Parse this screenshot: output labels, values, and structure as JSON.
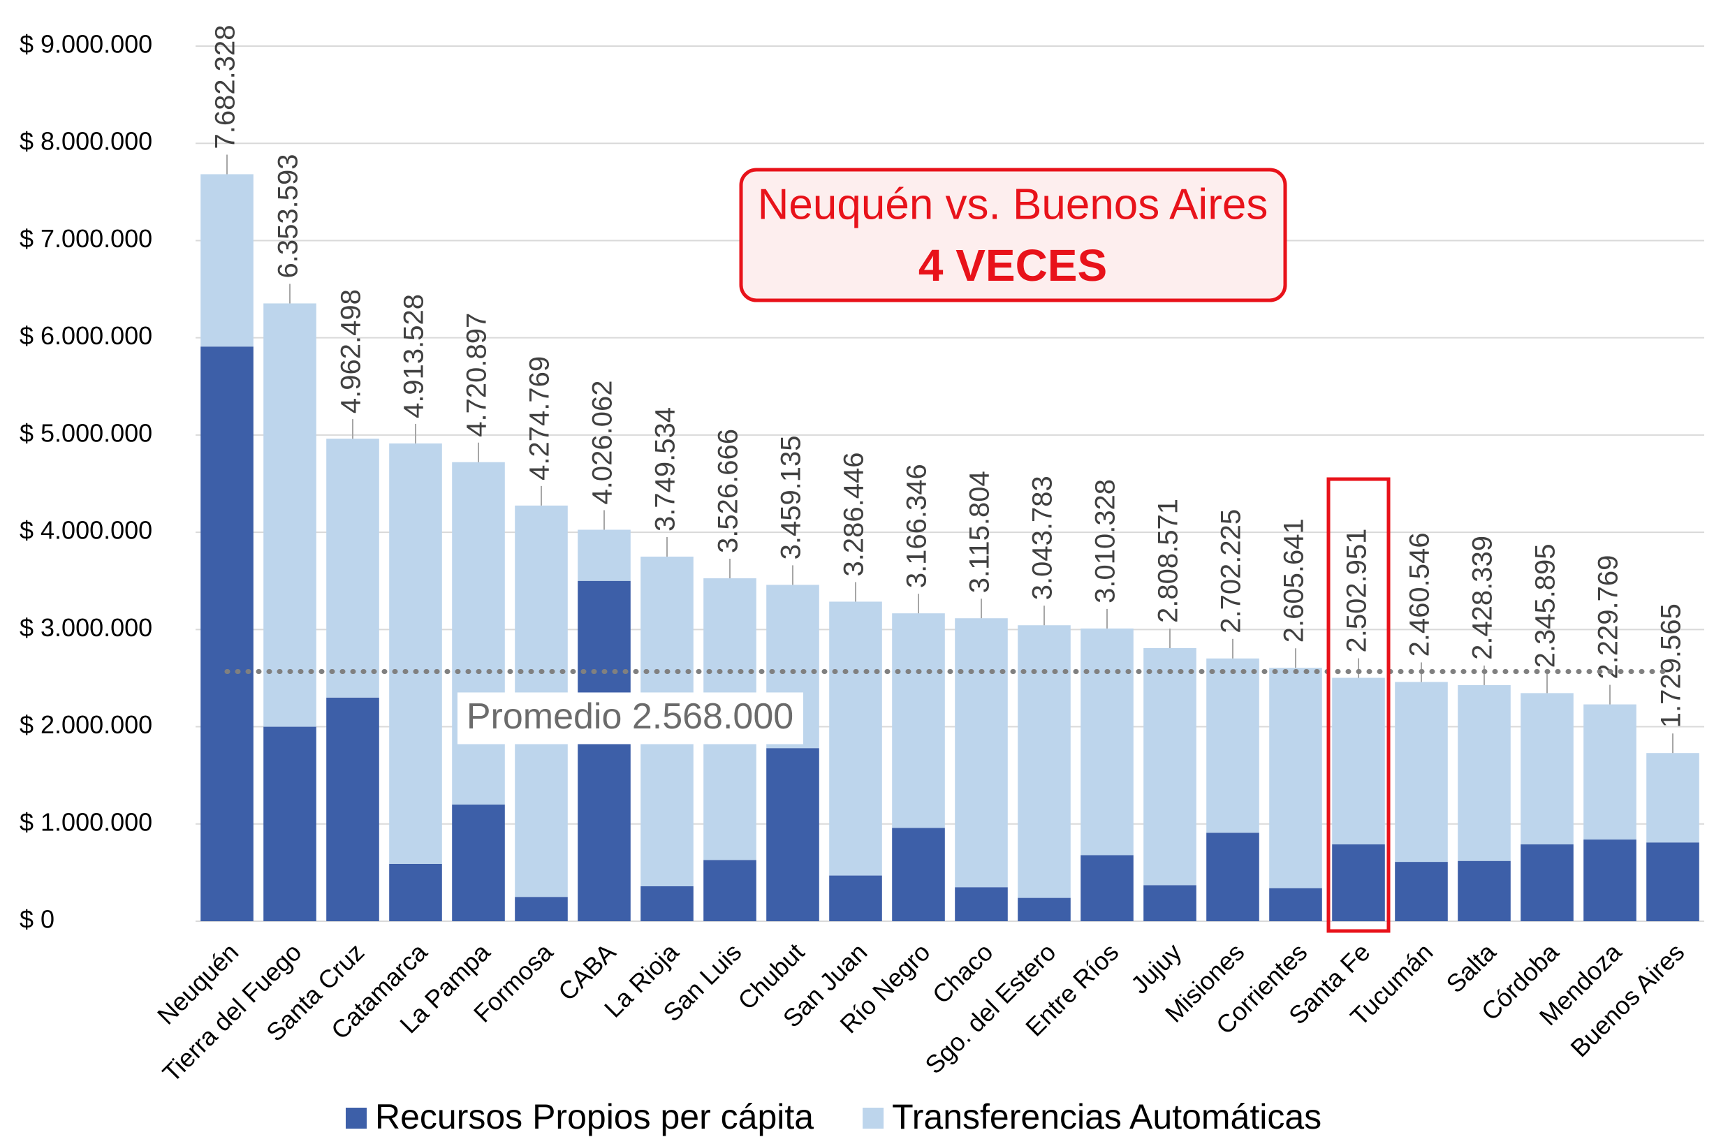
{
  "chart_data": {
    "type": "stacked_bar",
    "categories": [
      "Neuquén",
      "Tierra del Fuego",
      "Santa Cruz",
      "Catamarca",
      "La Pampa",
      "Formosa",
      "CABA",
      "La Rioja",
      "San Luis",
      "Chubut",
      "San Juan",
      "Río Negro",
      "Chaco",
      "Sgo. del Estero",
      "Entre Ríos",
      "Jujuy",
      "Misiones",
      "Corrientes",
      "Santa Fe",
      "Tucumán",
      "Salta",
      "Córdoba",
      "Mendoza",
      "Buenos Aires"
    ],
    "series": [
      {
        "name": "Recursos Propios per cápita",
        "color": "#3d5fa8",
        "values": [
          5910000,
          2000000,
          2300000,
          590000,
          1200000,
          250000,
          3500000,
          360000,
          630000,
          1780000,
          470000,
          960000,
          350000,
          240000,
          680000,
          370000,
          910000,
          340000,
          790000,
          610000,
          620000,
          790000,
          840000,
          810000
        ]
      },
      {
        "name": "Transferencias Automáticas",
        "color": "#bdd5ec",
        "values": [
          1772328,
          4353593,
          2662498,
          4323528,
          3520897,
          4024769,
          526062,
          3389534,
          2896666,
          1679135,
          2816446,
          2206346,
          2765804,
          2803783,
          2330328,
          2438571,
          1792225,
          2265641,
          1712951,
          1850546,
          1808339,
          1555895,
          1389769,
          919565
        ]
      }
    ],
    "totals": [
      7682328,
      6353593,
      4962498,
      4913528,
      4720897,
      4274769,
      4026062,
      3749534,
      3526666,
      3459135,
      3286446,
      3166346,
      3115804,
      3043783,
      3010328,
      2808571,
      2702225,
      2605641,
      2502951,
      2460546,
      2428339,
      2345895,
      2229769,
      1729565
    ],
    "total_labels": [
      "7.682.328",
      "6.353.593",
      "4.962.498",
      "4.913.528",
      "4.720.897",
      "4.274.769",
      "4.026.062",
      "3.749.534",
      "3.526.666",
      "3.459.135",
      "3.286.446",
      "3.166.346",
      "3.115.804",
      "3.043.783",
      "3.010.328",
      "2.808.571",
      "2.702.225",
      "2.605.641",
      "2.502.951",
      "2.460.546",
      "2.428.339",
      "2.345.895",
      "2.229.769",
      "1.729.565"
    ],
    "ylim": [
      0,
      9000000
    ],
    "yticks": [
      {
        "value": 0,
        "label": "$ 0"
      },
      {
        "value": 1000000,
        "label": "$ 1.000.000"
      },
      {
        "value": 2000000,
        "label": "$ 2.000.000"
      },
      {
        "value": 3000000,
        "label": "$ 3.000.000"
      },
      {
        "value": 4000000,
        "label": "$ 4.000.000"
      },
      {
        "value": 5000000,
        "label": "$ 5.000.000"
      },
      {
        "value": 6000000,
        "label": "$ 6.000.000"
      },
      {
        "value": 7000000,
        "label": "$ 7.000.000"
      },
      {
        "value": 8000000,
        "label": "$ 8.000.000"
      },
      {
        "value": 9000000,
        "label": "$ 9.000.000"
      }
    ],
    "grid": true,
    "average": {
      "value": 2568000,
      "label": "Promedio 2.568.000"
    },
    "annotation": {
      "line1": "Neuquén vs. Buenos Aires",
      "line2": "4 VECES"
    }
  }
}
